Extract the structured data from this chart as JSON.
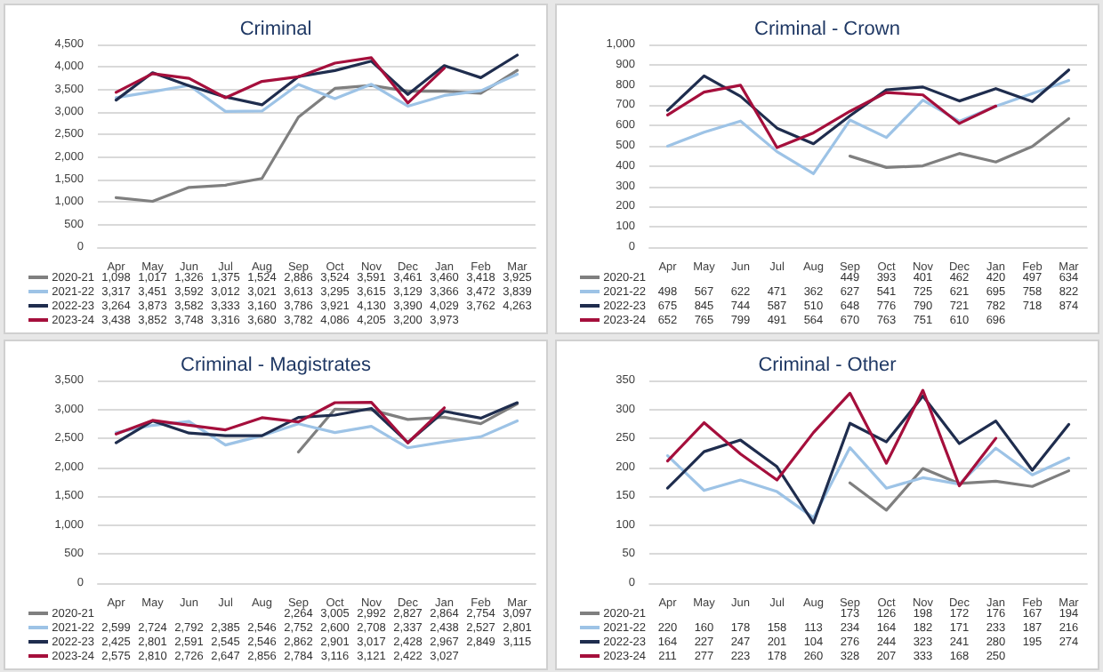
{
  "chart_data": [
    {
      "type": "line",
      "title": "Criminal",
      "categories": [
        "Apr",
        "May",
        "Jun",
        "Jul",
        "Aug",
        "Sep",
        "Oct",
        "Nov",
        "Dec",
        "Jan",
        "Feb",
        "Mar"
      ],
      "ylim": [
        0,
        4500
      ],
      "yticks": [
        0,
        500,
        {
          "value": 1000,
          "label": "1,000"
        },
        {
          "value": 1500,
          "label": "1,500"
        },
        {
          "value": 2000,
          "label": "2,000"
        },
        {
          "value": 2500,
          "label": "2,500"
        },
        {
          "value": 3000,
          "label": "3,000"
        },
        {
          "value": 3500,
          "label": "3,500"
        },
        {
          "value": 4000,
          "label": "4,000"
        },
        {
          "value": 4500,
          "label": "4,500"
        }
      ],
      "grid": "y",
      "legend": "bottom",
      "series": [
        {
          "name": "2020-21",
          "color": "#7f7f7f",
          "values": [
            1098,
            1017,
            1326,
            1375,
            1524,
            2886,
            3524,
            3591,
            3461,
            3460,
            3418,
            3925
          ],
          "value_labels": [
            "1,098",
            "1,017",
            "1,326",
            "1,375",
            "1,524",
            "2,886",
            "3,524",
            "3,591",
            "3,461",
            "3,460",
            "3,418",
            "3,925"
          ]
        },
        {
          "name": "2021-22",
          "color": "#9dc3e6",
          "values": [
            3317,
            3451,
            3592,
            3012,
            3021,
            3613,
            3295,
            3615,
            3129,
            3366,
            3472,
            3839
          ],
          "value_labels": [
            "3,317",
            "3,451",
            "3,592",
            "3,012",
            "3,021",
            "3,613",
            "3,295",
            "3,615",
            "3,129",
            "3,366",
            "3,472",
            "3,839"
          ]
        },
        {
          "name": "2022-23",
          "color": "#1f2d4e",
          "values": [
            3264,
            3873,
            3582,
            3333,
            3160,
            3786,
            3921,
            4130,
            3390,
            4029,
            3762,
            4263
          ],
          "value_labels": [
            "3,264",
            "3,873",
            "3,582",
            "3,333",
            "3,160",
            "3,786",
            "3,921",
            "4,130",
            "3,390",
            "4,029",
            "3,762",
            "4,263"
          ]
        },
        {
          "name": "2023-24",
          "color": "#a50f3c",
          "values": [
            3438,
            3852,
            3748,
            3316,
            3680,
            3782,
            4086,
            4205,
            3200,
            3973,
            null,
            null
          ],
          "value_labels": [
            "3,438",
            "3,852",
            "3,748",
            "3,316",
            "3,680",
            "3,782",
            "4,086",
            "4,205",
            "3,200",
            "3,973",
            null,
            null
          ]
        }
      ]
    },
    {
      "type": "line",
      "title": "Criminal - Crown",
      "categories": [
        "Apr",
        "May",
        "Jun",
        "Jul",
        "Aug",
        "Sep",
        "Oct",
        "Nov",
        "Dec",
        "Jan",
        "Feb",
        "Mar"
      ],
      "ylim": [
        0,
        1000
      ],
      "yticks": [
        0,
        100,
        200,
        300,
        400,
        500,
        600,
        700,
        800,
        900,
        {
          "value": 1000,
          "label": "1,000"
        }
      ],
      "grid": "y",
      "legend": "bottom",
      "data_labels": true,
      "series": [
        {
          "name": "2020-21",
          "color": "#7f7f7f",
          "values": [
            null,
            null,
            null,
            null,
            null,
            449,
            393,
            401,
            462,
            420,
            497,
            634
          ]
        },
        {
          "name": "2021-22",
          "color": "#9dc3e6",
          "values": [
            498,
            567,
            622,
            471,
            362,
            627,
            541,
            725,
            621,
            695,
            758,
            822
          ]
        },
        {
          "name": "2022-23",
          "color": "#1f2d4e",
          "values": [
            675,
            845,
            744,
            587,
            510,
            648,
            776,
            790,
            721,
            782,
            718,
            874
          ]
        },
        {
          "name": "2023-24",
          "color": "#a50f3c",
          "values": [
            652,
            765,
            799,
            491,
            564,
            670,
            763,
            751,
            610,
            696,
            null,
            null
          ]
        }
      ]
    },
    {
      "type": "line",
      "title": "Criminal - Magistrates",
      "categories": [
        "Apr",
        "May",
        "Jun",
        "Jul",
        "Aug",
        "Sep",
        "Oct",
        "Nov",
        "Dec",
        "Jan",
        "Feb",
        "Mar"
      ],
      "ylim": [
        0,
        3500
      ],
      "yticks": [
        0,
        500,
        {
          "value": 1000,
          "label": "1,000"
        },
        {
          "value": 1500,
          "label": "1,500"
        },
        {
          "value": 2000,
          "label": "2,000"
        },
        {
          "value": 2500,
          "label": "2,500"
        },
        {
          "value": 3000,
          "label": "3,000"
        },
        {
          "value": 3500,
          "label": "3,500"
        }
      ],
      "grid": "y",
      "legend": "bottom",
      "series": [
        {
          "name": "2020-21",
          "color": "#7f7f7f",
          "values": [
            null,
            null,
            null,
            null,
            null,
            2264,
            3005,
            2992,
            2827,
            2864,
            2754,
            3097
          ],
          "value_labels": [
            null,
            null,
            null,
            null,
            null,
            "2,264",
            "3,005",
            "2,992",
            "2,827",
            "2,864",
            "2,754",
            "3,097"
          ]
        },
        {
          "name": "2021-22",
          "color": "#9dc3e6",
          "values": [
            2599,
            2724,
            2792,
            2385,
            2546,
            2752,
            2600,
            2708,
            2337,
            2438,
            2527,
            2801
          ],
          "value_labels": [
            "2,599",
            "2,724",
            "2,792",
            "2,385",
            "2,546",
            "2,752",
            "2,600",
            "2,708",
            "2,337",
            "2,438",
            "2,527",
            "2,801"
          ]
        },
        {
          "name": "2022-23",
          "color": "#1f2d4e",
          "values": [
            2425,
            2801,
            2591,
            2545,
            2546,
            2862,
            2901,
            3017,
            2428,
            2967,
            2849,
            3115
          ],
          "value_labels": [
            "2,425",
            "2,801",
            "2,591",
            "2,545",
            "2,546",
            "2,862",
            "2,901",
            "3,017",
            "2,428",
            "2,967",
            "2,849",
            "3,115"
          ]
        },
        {
          "name": "2023-24",
          "color": "#a50f3c",
          "values": [
            2575,
            2810,
            2726,
            2647,
            2856,
            2784,
            3116,
            3121,
            2422,
            3027,
            null,
            null
          ],
          "value_labels": [
            "2,575",
            "2,810",
            "2,726",
            "2,647",
            "2,856",
            "2,784",
            "3,116",
            "3,121",
            "2,422",
            "3,027",
            null,
            null
          ]
        }
      ]
    },
    {
      "type": "line",
      "title": "Criminal - Other",
      "categories": [
        "Apr",
        "May",
        "Jun",
        "Jul",
        "Aug",
        "Sep",
        "Oct",
        "Nov",
        "Dec",
        "Jan",
        "Feb",
        "Mar"
      ],
      "ylim": [
        0,
        350
      ],
      "yticks": [
        0,
        50,
        100,
        150,
        200,
        250,
        300,
        350
      ],
      "grid": "y",
      "legend": "bottom",
      "data_labels": true,
      "series": [
        {
          "name": "2020-21",
          "color": "#7f7f7f",
          "values": [
            null,
            null,
            null,
            null,
            null,
            173,
            126,
            198,
            172,
            176,
            167,
            194
          ]
        },
        {
          "name": "2021-22",
          "color": "#9dc3e6",
          "values": [
            220,
            160,
            178,
            158,
            113,
            234,
            164,
            182,
            171,
            233,
            187,
            216
          ]
        },
        {
          "name": "2022-23",
          "color": "#1f2d4e",
          "values": [
            164,
            227,
            247,
            201,
            104,
            276,
            244,
            323,
            241,
            280,
            195,
            274
          ]
        },
        {
          "name": "2023-24",
          "color": "#a50f3c",
          "values": [
            211,
            277,
            223,
            178,
            260,
            328,
            207,
            333,
            168,
            250,
            null,
            null
          ]
        }
      ]
    }
  ]
}
